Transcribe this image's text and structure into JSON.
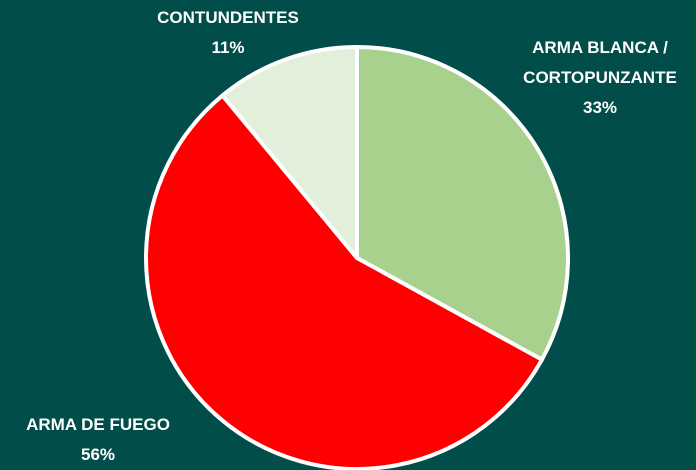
{
  "chart_data": {
    "type": "pie",
    "categories": [
      "ARMA BLANCA / CORTOPUNZANTE",
      "ARMA DE FUEGO",
      "CONTUNDENTES"
    ],
    "values": [
      33,
      56,
      11
    ],
    "value_labels": [
      "33%",
      "56%",
      "11%"
    ],
    "colors": [
      "#a9d18e",
      "#ff0000",
      "#e2efda"
    ]
  }
}
